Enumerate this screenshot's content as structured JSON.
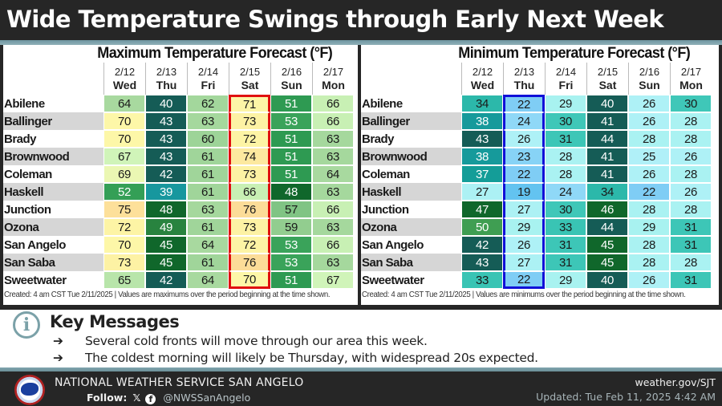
{
  "header": {
    "title": "Wide Temperature Swings through Early Next Week"
  },
  "max_table": {
    "title": "Maximum Temperature Forecast (°F)",
    "highlight_column": 3,
    "highlight_color": "#e01010",
    "columns": [
      {
        "date": "2/12",
        "day": "Wed"
      },
      {
        "date": "2/13",
        "day": "Thu"
      },
      {
        "date": "2/14",
        "day": "Fri"
      },
      {
        "date": "2/15",
        "day": "Sat"
      },
      {
        "date": "2/16",
        "day": "Sun"
      },
      {
        "date": "2/17",
        "day": "Mon"
      }
    ],
    "rows": [
      {
        "city": "Abilene",
        "values": [
          64,
          40,
          62,
          71,
          51,
          66
        ]
      },
      {
        "city": "Ballinger",
        "values": [
          70,
          43,
          63,
          73,
          53,
          66
        ]
      },
      {
        "city": "Brady",
        "values": [
          70,
          43,
          60,
          72,
          51,
          63
        ]
      },
      {
        "city": "Brownwood",
        "values": [
          67,
          43,
          61,
          74,
          51,
          63
        ]
      },
      {
        "city": "Coleman",
        "values": [
          69,
          42,
          61,
          73,
          51,
          64
        ]
      },
      {
        "city": "Haskell",
        "values": [
          52,
          39,
          61,
          66,
          48,
          63
        ]
      },
      {
        "city": "Junction",
        "values": [
          75,
          48,
          63,
          76,
          57,
          66
        ]
      },
      {
        "city": "Ozona",
        "values": [
          72,
          49,
          61,
          73,
          59,
          63
        ]
      },
      {
        "city": "San Angelo",
        "values": [
          70,
          45,
          64,
          72,
          53,
          66
        ]
      },
      {
        "city": "San Saba",
        "values": [
          73,
          45,
          61,
          76,
          53,
          63
        ]
      },
      {
        "city": "Sweetwater",
        "values": [
          65,
          42,
          64,
          70,
          51,
          67
        ]
      }
    ],
    "footnote": "Created: 4 am CST Tue 2/11/2025  |  Values are maximums over the period beginning at the time shown."
  },
  "min_table": {
    "title": "Minimum Temperature Forecast (°F)",
    "highlight_column": 1,
    "highlight_color": "#1010d8",
    "columns": [
      {
        "date": "2/12",
        "day": "Wed"
      },
      {
        "date": "2/13",
        "day": "Thu"
      },
      {
        "date": "2/14",
        "day": "Fri"
      },
      {
        "date": "2/15",
        "day": "Sat"
      },
      {
        "date": "2/16",
        "day": "Sun"
      },
      {
        "date": "2/17",
        "day": "Mon"
      }
    ],
    "rows": [
      {
        "city": "Abilene",
        "values": [
          34,
          22,
          29,
          40,
          26,
          30
        ]
      },
      {
        "city": "Ballinger",
        "values": [
          38,
          24,
          30,
          41,
          26,
          28
        ]
      },
      {
        "city": "Brady",
        "values": [
          43,
          26,
          31,
          44,
          28,
          28
        ]
      },
      {
        "city": "Brownwood",
        "values": [
          38,
          23,
          28,
          41,
          25,
          26
        ]
      },
      {
        "city": "Coleman",
        "values": [
          37,
          22,
          28,
          41,
          26,
          28
        ]
      },
      {
        "city": "Haskell",
        "values": [
          27,
          19,
          24,
          34,
          22,
          26
        ]
      },
      {
        "city": "Junction",
        "values": [
          47,
          27,
          30,
          46,
          28,
          28
        ]
      },
      {
        "city": "Ozona",
        "values": [
          50,
          29,
          33,
          44,
          29,
          31
        ]
      },
      {
        "city": "San Angelo",
        "values": [
          42,
          26,
          31,
          45,
          28,
          31
        ]
      },
      {
        "city": "San Saba",
        "values": [
          43,
          27,
          31,
          45,
          28,
          28
        ]
      },
      {
        "city": "Sweetwater",
        "values": [
          33,
          22,
          29,
          40,
          26,
          31
        ]
      }
    ],
    "footnote": "Created: 4 am CST Tue 2/11/2025  |  Values are minimums over the period beginning at the time shown."
  },
  "key_messages": {
    "icon": "info-icon",
    "title": "Key Messages",
    "arrow": "➔",
    "items": [
      "Several cold fronts will move through our area this week.",
      "The coldest morning will likely be Thursday, with widespread 20s expected."
    ]
  },
  "footer": {
    "org": "NATIONAL WEATHER SERVICE SAN ANGELO",
    "follow_label": "Follow:",
    "x_icon": "𝕏",
    "facebook_icon": "f",
    "handle": "@NWSSanAngelo",
    "site": "weather.gov/SJT",
    "updated": "Updated: Tue Feb 11, 2025 4:42 AM"
  },
  "color_scale": {
    "stops": [
      {
        "t": 19,
        "color": "#63c3f0"
      },
      {
        "t": 22,
        "color": "#7fcdf5"
      },
      {
        "t": 24,
        "color": "#8fd8f7"
      },
      {
        "t": 25,
        "color": "#b0f0f8"
      },
      {
        "t": 29,
        "color": "#a8f2f0"
      },
      {
        "t": 30,
        "color": "#3fc7b8"
      },
      {
        "t": 33,
        "color": "#39c4b4"
      },
      {
        "t": 36,
        "color": "#13a095"
      },
      {
        "t": 39,
        "color": "#17979e"
      },
      {
        "t": 40,
        "color": "#155c56"
      },
      {
        "t": 44,
        "color": "#155c56"
      },
      {
        "t": 45,
        "color": "#10672b"
      },
      {
        "t": 48,
        "color": "#10672b"
      },
      {
        "t": 50,
        "color": "#3f9e52"
      },
      {
        "t": 51,
        "color": "#2e9a52"
      },
      {
        "t": 53,
        "color": "#3aa35a"
      },
      {
        "t": 57,
        "color": "#80c484"
      },
      {
        "t": 59,
        "color": "#92cd8f"
      },
      {
        "t": 60,
        "color": "#9dd498"
      },
      {
        "t": 64,
        "color": "#a8d99f"
      },
      {
        "t": 66,
        "color": "#c8f0b4"
      },
      {
        "t": 68,
        "color": "#d8f7bd"
      },
      {
        "t": 70,
        "color": "#fdf7a8"
      },
      {
        "t": 73,
        "color": "#fdf2a4"
      },
      {
        "t": 75,
        "color": "#fde09a"
      },
      {
        "t": 76,
        "color": "#fcdc98"
      }
    ],
    "light_text_ranges": [
      [
        34,
        53
      ],
      [
        36,
        53
      ]
    ]
  }
}
